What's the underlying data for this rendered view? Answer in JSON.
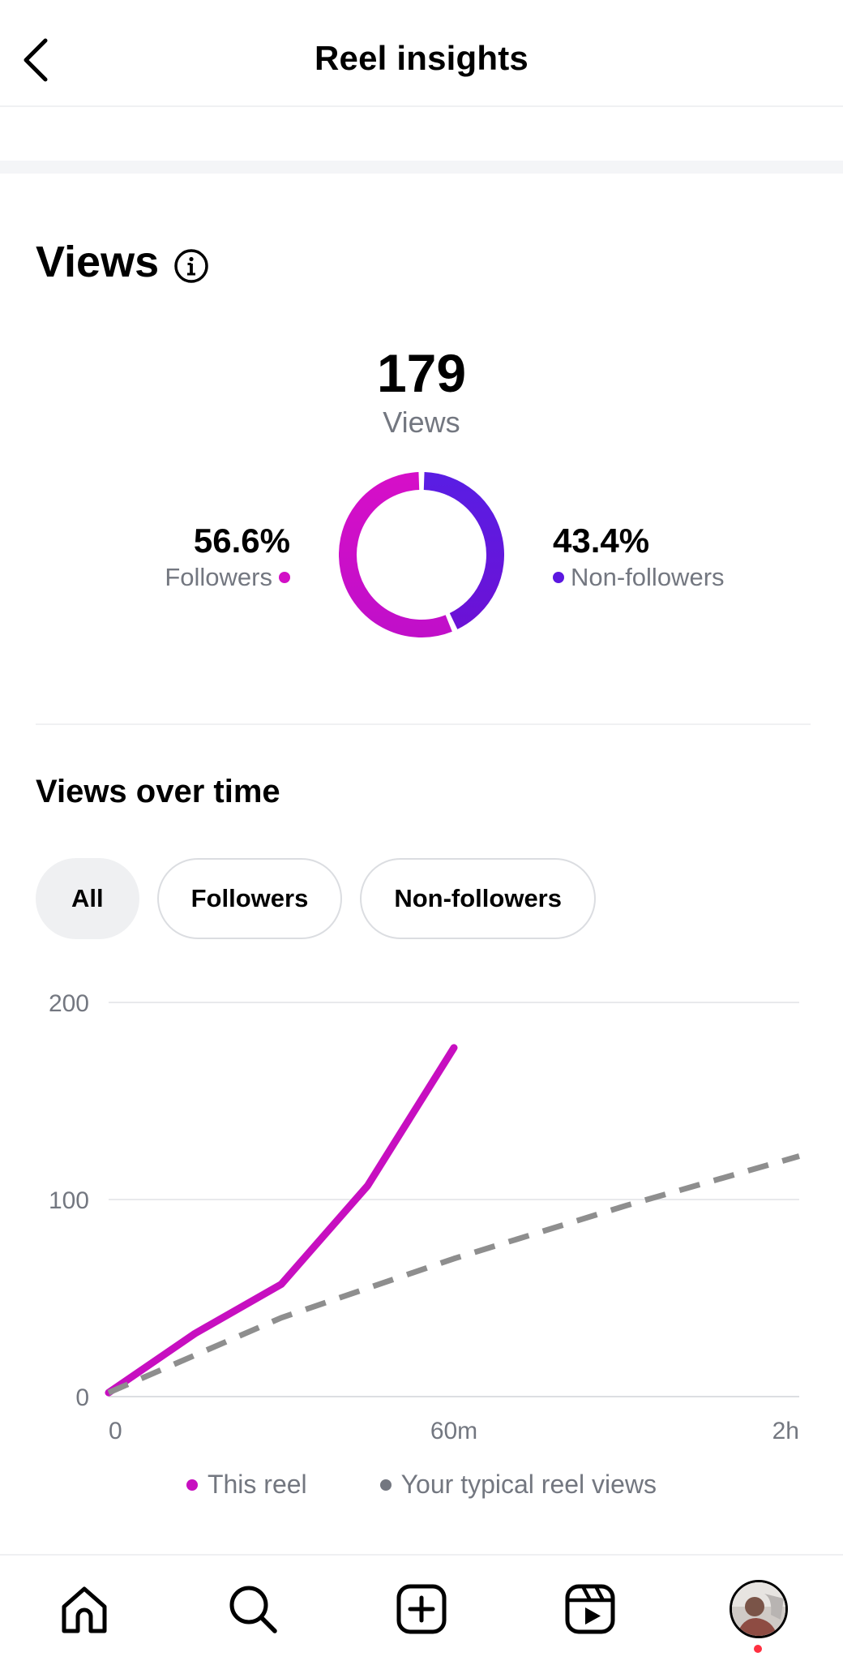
{
  "header": {
    "title": "Reel insights",
    "back_icon": "chevron-left-icon"
  },
  "views": {
    "heading": "Views",
    "info_icon": "info-circle-icon",
    "total": "179",
    "total_label": "Views",
    "followers": {
      "percent": "56.6%",
      "label": "Followers",
      "fraction": 0.566,
      "color": "#d20fc6"
    },
    "non_followers": {
      "percent": "43.4%",
      "label": "Non-followers",
      "fraction": 0.434,
      "color": "#5b17e0"
    }
  },
  "views_over_time": {
    "title": "Views over time",
    "filters": [
      {
        "label": "All",
        "active": true
      },
      {
        "label": "Followers",
        "active": false
      },
      {
        "label": "Non-followers",
        "active": false
      }
    ]
  },
  "chart_data": {
    "type": "line",
    "y_ticks": [
      "200",
      "100",
      "0"
    ],
    "x_ticks": [
      "0",
      "60m",
      "2h"
    ],
    "ylim": [
      0,
      200
    ],
    "xlim_minutes": [
      0,
      120
    ],
    "grid": true,
    "legend_position": "bottom",
    "series": [
      {
        "name": "This reel",
        "color": "#c70fc0",
        "style": "solid",
        "x": [
          0,
          15,
          30,
          45,
          60
        ],
        "y": [
          2,
          32,
          57,
          107,
          177
        ]
      },
      {
        "name": "Your typical reel views",
        "color": "#8e8e8e",
        "style": "dashed",
        "x": [
          0,
          30,
          60,
          90,
          120
        ],
        "y": [
          2,
          40,
          70,
          97,
          122
        ]
      }
    ]
  },
  "tabbar": {
    "items": [
      {
        "name": "home",
        "icon": "home-icon"
      },
      {
        "name": "search",
        "icon": "search-icon"
      },
      {
        "name": "create",
        "icon": "plus-square-icon"
      },
      {
        "name": "reels",
        "icon": "reels-icon"
      },
      {
        "name": "profile",
        "icon": "avatar"
      }
    ],
    "notification_color": "#ff3040"
  }
}
